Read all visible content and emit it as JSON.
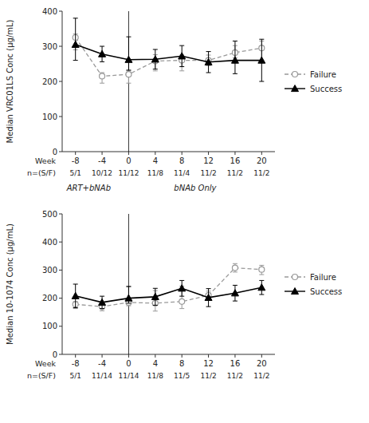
{
  "chart_data": [
    {
      "type": "line",
      "ylabel": "Median VRC01LS Conc (μg/mL)",
      "xlabel": "Week",
      "x": [
        -8,
        -4,
        0,
        4,
        8,
        12,
        16,
        20
      ],
      "xlim": [
        -10,
        22
      ],
      "xticks": [
        -8,
        -4,
        0,
        4,
        8,
        12,
        16,
        20
      ],
      "ylim": [
        0,
        400
      ],
      "yticks": [
        0,
        100,
        200,
        300,
        400
      ],
      "grid": false,
      "legend": "right",
      "vline": 0,
      "series": [
        {
          "name": "Failure",
          "color": "#999999",
          "marker": "circle-open",
          "line_style": "dashed",
          "values": [
            325,
            215,
            220,
            258,
            260,
            260,
            282,
            295
          ],
          "err_low": [
            35,
            20,
            25,
            28,
            30,
            15,
            15,
            40
          ],
          "err_high": [
            10,
            10,
            10,
            18,
            15,
            15,
            20,
            20
          ]
        },
        {
          "name": "Success",
          "color": "#000000",
          "marker": "triangle",
          "line_style": "solid",
          "values": [
            305,
            278,
            262,
            263,
            272,
            255,
            260,
            260
          ],
          "err_low": [
            45,
            22,
            30,
            28,
            30,
            30,
            38,
            60
          ],
          "err_high": [
            75,
            22,
            65,
            28,
            30,
            30,
            55,
            60
          ]
        }
      ],
      "n_label": "n=(S/F)",
      "n_labels": [
        "5/1",
        "10/12",
        "11/12",
        "11/8",
        "11/4",
        "11/2",
        "11/2",
        "11/2"
      ],
      "annotations": [
        {
          "text": "ART+bNAb",
          "x": -6
        },
        {
          "text": "bNAb Only",
          "x": 10
        }
      ]
    },
    {
      "type": "line",
      "ylabel": "Median 10-1074 Conc (μg/mL)",
      "xlabel": "Week",
      "x": [
        -8,
        -4,
        0,
        4,
        8,
        12,
        16,
        20
      ],
      "xlim": [
        -10,
        22
      ],
      "xticks": [
        -8,
        -4,
        0,
        4,
        8,
        12,
        16,
        20
      ],
      "ylim": [
        0,
        500
      ],
      "yticks": [
        0,
        100,
        200,
        300,
        400,
        500
      ],
      "grid": false,
      "legend": "right",
      "vline": 0,
      "series": [
        {
          "name": "Failure",
          "color": "#999999",
          "marker": "circle-open",
          "line_style": "dashed",
          "values": [
            178,
            170,
            185,
            182,
            188,
            210,
            308,
            302
          ],
          "err_low": [
            15,
            15,
            12,
            28,
            25,
            15,
            15,
            18
          ],
          "err_high": [
            10,
            10,
            55,
            45,
            55,
            15,
            15,
            15
          ]
        },
        {
          "name": "Success",
          "color": "#000000",
          "marker": "triangle",
          "line_style": "solid",
          "values": [
            208,
            185,
            200,
            205,
            235,
            202,
            218,
            238
          ],
          "err_low": [
            42,
            22,
            18,
            30,
            28,
            32,
            28,
            25
          ],
          "err_high": [
            42,
            22,
            42,
            30,
            28,
            32,
            28,
            25
          ]
        }
      ],
      "n_label": "n=(S/F)",
      "n_labels": [
        "5/1",
        "11/14",
        "11/14",
        "11/8",
        "11/5",
        "11/2",
        "11/2",
        "11/2"
      ]
    }
  ]
}
